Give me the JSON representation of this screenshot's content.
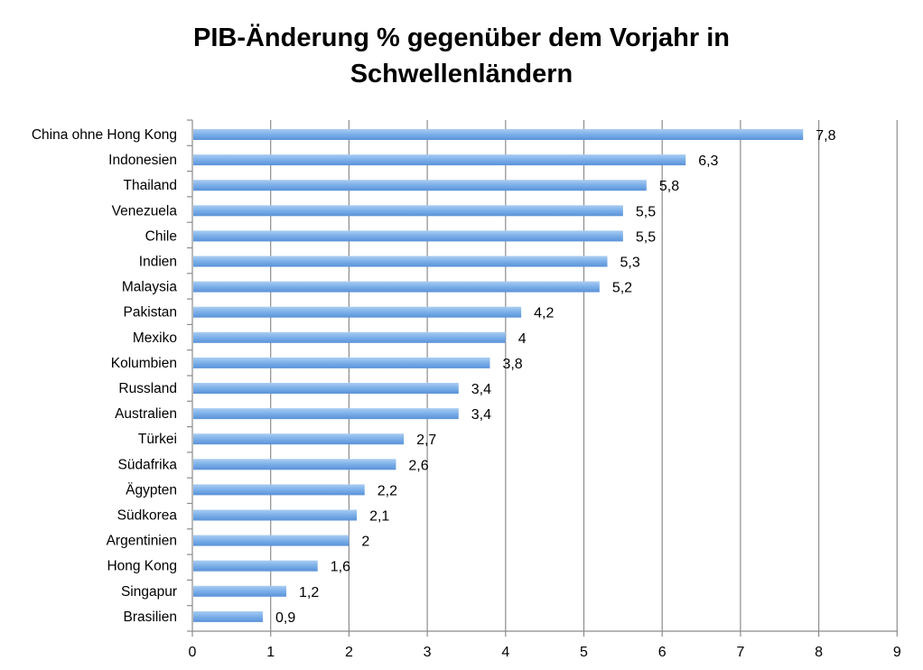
{
  "chart_data": {
    "type": "bar",
    "orientation": "horizontal",
    "title_line1": "PIB-Änderung % gegenüber dem Vorjahr in",
    "title_line2": "Schwellenländern",
    "categories": [
      "China ohne Hong Kong",
      "Indonesien",
      "Thailand",
      "Venezuela",
      "Chile",
      "Indien",
      "Malaysia",
      "Pakistan",
      "Mexiko",
      "Kolumbien",
      "Russland",
      "Australien",
      "Türkei",
      "Südafrika",
      "Ägypten",
      "Südkorea",
      "Argentinien",
      "Hong Kong",
      "Singapur",
      "Brasilien"
    ],
    "values": [
      7.8,
      6.3,
      5.8,
      5.5,
      5.5,
      5.3,
      5.2,
      4.2,
      4,
      3.8,
      3.4,
      3.4,
      2.7,
      2.6,
      2.2,
      2.1,
      2,
      1.6,
      1.2,
      0.9
    ],
    "value_labels": [
      "7,8",
      "6,3",
      "5,8",
      "5,5",
      "5,5",
      "5,3",
      "5,2",
      "4,2",
      "4",
      "3,8",
      "3,4",
      "3,4",
      "2,7",
      "2,6",
      "2,2",
      "2,1",
      "2",
      "1,6",
      "1,2",
      "0,9"
    ],
    "xlim": [
      0,
      9
    ],
    "x_ticks": [
      0,
      1,
      2,
      3,
      4,
      5,
      6,
      7,
      8,
      9
    ],
    "x_tick_labels": [
      "0",
      "1",
      "2",
      "3",
      "4",
      "5",
      "6",
      "7",
      "8",
      "9"
    ],
    "grid": "vertical",
    "legend": "none",
    "colors": {
      "bar_light": "#aacdf2",
      "bar_mid": "#7fb2ea",
      "bar_dark": "#5a92d8",
      "grid": "#8c8c8c",
      "axis": "#8c8c8c"
    }
  }
}
